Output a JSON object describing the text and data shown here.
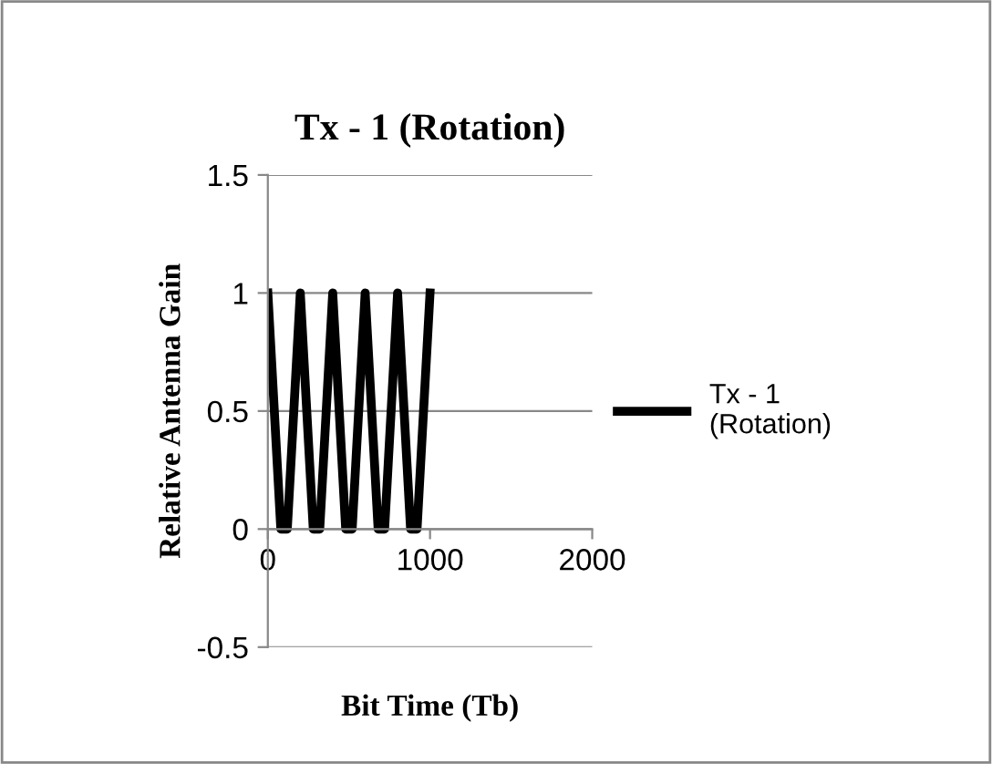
{
  "chart_data": {
    "type": "line",
    "title": "Tx - 1 (Rotation)",
    "xlabel": "Bit Time (Tb)",
    "ylabel": "Relative Antenna Gain",
    "series": [
      {
        "name": "Tx - 1\n(Rotation)",
        "color": "#000000",
        "x": [
          0,
          80,
          120,
          200,
          280,
          320,
          400,
          480,
          520,
          600,
          680,
          720,
          800,
          880,
          920,
          1000
        ],
        "values": [
          1,
          0,
          0,
          1,
          0,
          0,
          1,
          0,
          0,
          1,
          0,
          0,
          1,
          0,
          0,
          1
        ]
      }
    ],
    "xlim": [
      0,
      2000
    ],
    "xticks": [
      0,
      1000,
      2000
    ],
    "ylim": [
      -0.5,
      1.5
    ],
    "yticks": [
      -0.5,
      0,
      0.5,
      1,
      1.5
    ],
    "grid": "y",
    "legend": "right",
    "marker": "none",
    "line_style": "solid"
  }
}
